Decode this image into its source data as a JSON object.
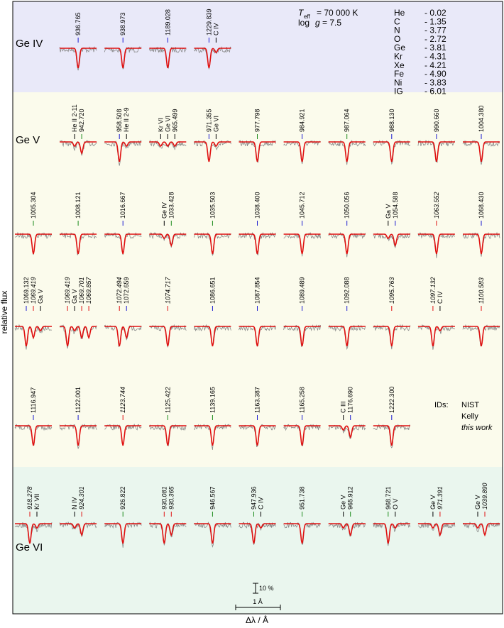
{
  "y_axis_label": "relative flux",
  "x_axis_label": "Δλ / Å",
  "params": {
    "t": "T",
    "t_sub": "eff",
    "t_value": "= 70 000 K",
    "g_prefix": "log",
    "g": "g",
    "g_value": "= 7.5"
  },
  "abundances": [
    {
      "element": "He",
      "value": "- 0.02"
    },
    {
      "element": "C",
      "value": "- 1.35"
    },
    {
      "element": "N",
      "value": "- 3.77"
    },
    {
      "element": "O",
      "value": "- 2.72"
    },
    {
      "element": "Ge",
      "value": "- 3.81"
    },
    {
      "element": "Kr",
      "value": "- 4.31"
    },
    {
      "element": "Xe",
      "value": "- 4.21"
    },
    {
      "element": "Fe",
      "value": "- 4.90"
    },
    {
      "element": "Ni",
      "value": "- 3.83"
    },
    {
      "element": "IG",
      "value": "- 6.01"
    }
  ],
  "legend": {
    "title": "IDs:",
    "items": [
      {
        "label": "NIST",
        "color": "#1a1ad0"
      },
      {
        "label": "Kelly",
        "color": "#1a8a1a"
      },
      {
        "label": "this work",
        "color": "#e01010"
      }
    ]
  },
  "scale": {
    "flux": "10 %",
    "wavelength": "1 Å"
  },
  "rows": [
    {
      "ion": "Ge IV",
      "panels": [
        {
          "col": 1,
          "lines": [
            {
              "label": "936.765",
              "ref": 0
            }
          ]
        },
        {
          "col": 2,
          "lines": [
            {
              "label": "938.973",
              "ref": 0
            }
          ]
        },
        {
          "col": 3,
          "lines": [
            {
              "label": "1189.028",
              "ref": 0
            }
          ]
        },
        {
          "col": 4,
          "lines": [
            {
              "label": "1229.839",
              "ref": 0
            },
            {
              "label": "C IV"
            }
          ]
        }
      ]
    },
    {
      "ion": "Ge V",
      "panels": [
        {
          "col": 1,
          "lines": [
            {
              "label": "He II 2-11"
            },
            {
              "label": "942.720",
              "ref": 1
            }
          ]
        },
        {
          "col": 2,
          "lines": [
            {
              "label": "958.508",
              "ref": 0
            },
            {
              "label": "He II 2-9"
            }
          ]
        },
        {
          "col": 3,
          "lines": [
            {
              "label": "Kr VI"
            },
            {
              "label": "Ge VI"
            },
            {
              "label": "965.499"
            }
          ]
        },
        {
          "col": 4,
          "lines": [
            {
              "label": "971.355",
              "ref": 0
            },
            {
              "label": "Ge VI"
            }
          ]
        },
        {
          "col": 5,
          "lines": [
            {
              "label": "977.798",
              "ref": 1
            }
          ]
        },
        {
          "col": 6,
          "lines": [
            {
              "label": "984.921",
              "ref": 0
            }
          ]
        },
        {
          "col": 7,
          "lines": [
            {
              "label": "987.064",
              "ref": 1
            }
          ]
        },
        {
          "col": 8,
          "lines": [
            {
              "label": "988.130",
              "ref": 0
            }
          ]
        },
        {
          "col": 9,
          "lines": [
            {
              "label": "990.660",
              "ref": 0
            }
          ]
        },
        {
          "col": 10,
          "lines": [
            {
              "label": "1004.380",
              "ref": 0
            }
          ]
        }
      ]
    },
    {
      "panels": [
        {
          "col": 0,
          "lines": [
            {
              "label": "1005.304",
              "ref": 1
            }
          ]
        },
        {
          "col": 1,
          "lines": [
            {
              "label": "1008.121",
              "ref": 1
            }
          ]
        },
        {
          "col": 2,
          "lines": [
            {
              "label": "1016.667",
              "ref": 0
            }
          ]
        },
        {
          "col": 3,
          "lines": [
            {
              "label": "Ge IV"
            },
            {
              "label": "1033.428",
              "ref": 1
            }
          ]
        },
        {
          "col": 4,
          "lines": [
            {
              "label": "1035.503",
              "ref": 1
            }
          ]
        },
        {
          "col": 5,
          "lines": [
            {
              "label": "1038.400",
              "ref": 0
            }
          ]
        },
        {
          "col": 6,
          "lines": [
            {
              "label": "1045.712",
              "ref": 0
            }
          ]
        },
        {
          "col": 7,
          "lines": [
            {
              "label": "1050.056",
              "ref": 0
            }
          ]
        },
        {
          "col": 8,
          "lines": [
            {
              "label": "Ga V"
            },
            {
              "label": "1054.588",
              "ref": 0
            }
          ]
        },
        {
          "col": 9,
          "lines": [
            {
              "label": "1063.552",
              "ref": 2
            }
          ]
        },
        {
          "col": 10,
          "lines": [
            {
              "label": "1068.430",
              "ref": 0
            }
          ]
        }
      ]
    },
    {
      "panels": [
        {
          "col": 0,
          "lines": [
            {
              "label": "1069.132",
              "ref": 0
            },
            {
              "label": "1069.419",
              "ref": 2
            },
            {
              "label": "Ga V"
            }
          ]
        },
        {
          "col": 1,
          "lines": [
            {
              "label": "1069.419",
              "ref": 2
            },
            {
              "label": "Ga V"
            },
            {
              "label": "1069.701",
              "ref": 2
            },
            {
              "label": "1069.857",
              "ref": 2
            }
          ]
        },
        {
          "col": 2,
          "lines": [
            {
              "label": "1072.494",
              "ref": 2
            },
            {
              "label": "1072.659",
              "ref": 0
            }
          ]
        },
        {
          "col": 3,
          "lines": [
            {
              "label": "1074.717",
              "ref": 2
            }
          ]
        },
        {
          "col": 4,
          "lines": [
            {
              "label": "1086.651",
              "ref": 0
            }
          ]
        },
        {
          "col": 5,
          "lines": [
            {
              "label": "1087.854",
              "ref": 0
            }
          ]
        },
        {
          "col": 6,
          "lines": [
            {
              "label": "1089.489",
              "ref": 0
            }
          ]
        },
        {
          "col": 7,
          "lines": [
            {
              "label": "1092.088",
              "ref": 0
            }
          ]
        },
        {
          "col": 8,
          "lines": [
            {
              "label": "1095.763",
              "ref": 2
            }
          ]
        },
        {
          "col": 9,
          "lines": [
            {
              "label": "1097.132",
              "ref": 2
            },
            {
              "label": "C IV"
            }
          ]
        },
        {
          "col": 10,
          "lines": [
            {
              "label": "1100.583",
              "ref": 2
            }
          ]
        }
      ]
    },
    {
      "panels": [
        {
          "col": 0,
          "lines": [
            {
              "label": "1116.947",
              "ref": 0
            }
          ]
        },
        {
          "col": 1,
          "lines": [
            {
              "label": "1122.001",
              "ref": 0
            }
          ]
        },
        {
          "col": 2,
          "lines": [
            {
              "label": "1123.744",
              "ref": 2
            }
          ]
        },
        {
          "col": 3,
          "lines": [
            {
              "label": "1125.422",
              "ref": 1
            }
          ]
        },
        {
          "col": 4,
          "lines": [
            {
              "label": "1139.165",
              "ref": 1
            }
          ]
        },
        {
          "col": 5,
          "lines": [
            {
              "label": "1163.387",
              "ref": 0
            }
          ]
        },
        {
          "col": 6,
          "lines": [
            {
              "label": "1165.258",
              "ref": 0
            }
          ]
        },
        {
          "col": 7,
          "lines": [
            {
              "label": "C III"
            },
            {
              "label": "1176.690",
              "ref": 0
            }
          ]
        },
        {
          "col": 8,
          "lines": [
            {
              "label": "1222.300",
              "ref": 0
            }
          ]
        }
      ]
    },
    {
      "ion": "Ge VI",
      "panels": [
        {
          "col": 0,
          "lines": [
            {
              "label": "918.278",
              "ref": 2
            },
            {
              "label": "Kr VII"
            }
          ]
        },
        {
          "col": 1,
          "lines": [
            {
              "label": "N IV"
            },
            {
              "label": "924.301",
              "ref": 2
            }
          ]
        },
        {
          "col": 2,
          "lines": [
            {
              "label": "926.822",
              "ref": 1
            }
          ]
        },
        {
          "col": 3,
          "lines": [
            {
              "label": "930.081",
              "ref": 2
            },
            {
              "label": "930.365",
              "ref": 2
            }
          ]
        },
        {
          "col": 4,
          "lines": [
            {
              "label": "946.567",
              "ref": 1
            }
          ]
        },
        {
          "col": 5,
          "lines": [
            {
              "label": "947.936",
              "ref": 1
            },
            {
              "label": "C IV"
            }
          ]
        },
        {
          "col": 6,
          "lines": [
            {
              "label": "951.738",
              "ref": 1
            }
          ]
        },
        {
          "col": 7,
          "lines": [
            {
              "label": "Ge V"
            },
            {
              "label": "965.912",
              "ref": 1
            }
          ]
        },
        {
          "col": 8,
          "lines": [
            {
              "label": "968.721",
              "ref": 1
            },
            {
              "label": "O V"
            }
          ]
        },
        {
          "col": 9,
          "lines": [
            {
              "label": "Ge V"
            },
            {
              "label": "971.391",
              "ref": 2
            }
          ]
        },
        {
          "col": 10,
          "lines": [
            {
              "label": "Ge V"
            },
            {
              "label": "1039.890",
              "ref": 2
            }
          ]
        }
      ]
    }
  ]
}
